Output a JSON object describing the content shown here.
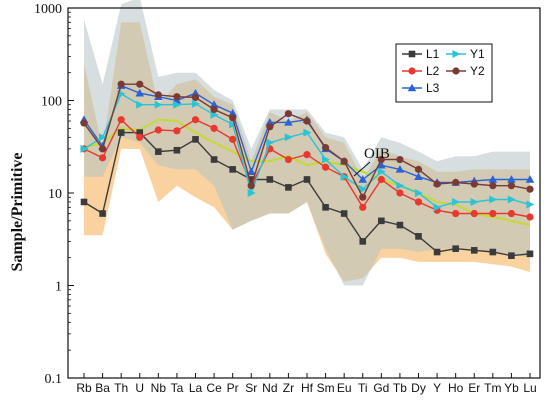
{
  "chart_data": {
    "type": "line",
    "ylabel": "Sample/Primitive",
    "yscale": "log",
    "ylim": [
      0.1,
      1000
    ],
    "y_ticks": [
      "0.1",
      "1",
      "10",
      "100",
      "1000"
    ],
    "categories": [
      "Rb",
      "Ba",
      "Th",
      "U",
      "Nb",
      "Ta",
      "La",
      "Ce",
      "Pr",
      "Sr",
      "Nd",
      "Zr",
      "Hf",
      "Sm",
      "Eu",
      "Ti",
      "Gd",
      "Tb",
      "Dy",
      "Y",
      "Ho",
      "Er",
      "Tm",
      "Yb",
      "Lu"
    ],
    "bands": [
      {
        "color": "#f5b461",
        "upper": [
          250,
          30,
          700,
          700,
          90,
          150,
          170,
          110,
          90,
          22,
          75,
          60,
          75,
          40,
          35,
          14,
          30,
          25,
          22,
          17,
          17,
          18,
          18,
          18,
          18
        ],
        "lower": [
          3.5,
          3.5,
          30,
          30,
          8,
          12,
          9,
          7,
          4,
          5,
          6,
          6,
          8,
          2.2,
          1.1,
          1.2,
          2,
          2,
          1.8,
          1.8,
          1.8,
          1.8,
          1.7,
          1.6,
          1.4
        ]
      },
      {
        "color": "#b5c2c5",
        "upper": [
          750,
          150,
          1100,
          1300,
          180,
          200,
          200,
          130,
          100,
          30,
          80,
          80,
          80,
          45,
          40,
          18,
          40,
          35,
          28,
          22,
          25,
          25,
          28,
          28,
          28
        ],
        "lower": [
          15,
          15,
          40,
          35,
          20,
          18,
          18,
          12,
          4,
          5,
          6,
          6,
          8,
          2.5,
          1,
          1,
          2.5,
          2.5,
          2.3,
          2.5,
          2.5,
          2.5,
          2.3,
          2.2,
          2
        ]
      }
    ],
    "series": [
      {
        "name": "L1",
        "color": "#3b3b3b",
        "marker": "square",
        "values": [
          8,
          6,
          45,
          45,
          28,
          29,
          38,
          23,
          18,
          14,
          14,
          11.5,
          14,
          7,
          6,
          3,
          5,
          4.5,
          3.4,
          2.3,
          2.5,
          2.4,
          2.3,
          2.1,
          2.2
        ]
      },
      {
        "name": "L2",
        "color": "#e8392e",
        "marker": "circle",
        "values": [
          30,
          24,
          62,
          40,
          48,
          47,
          62,
          50,
          38,
          12,
          30,
          23,
          26,
          19,
          15,
          7,
          14,
          10,
          8,
          6.5,
          6,
          6,
          6,
          6,
          5.5
        ]
      },
      {
        "name": "L3",
        "color": "#2a63d6",
        "marker": "triangle",
        "values": [
          62,
          32,
          145,
          120,
          110,
          100,
          120,
          90,
          73,
          17,
          58,
          58,
          62,
          30,
          22,
          14,
          20,
          18,
          15,
          13,
          13,
          13.5,
          14,
          14,
          14
        ]
      },
      {
        "name": "Y1",
        "color": "#2bc4d6",
        "marker": "arrow",
        "values": [
          30,
          40,
          118,
          90,
          90,
          90,
          92,
          70,
          55,
          10,
          35,
          40,
          45,
          23,
          15,
          11,
          17,
          12,
          10,
          7,
          8,
          8,
          8.5,
          8.5,
          7.5
        ]
      },
      {
        "name": "Y2",
        "color": "#7a3b34",
        "marker": "circle",
        "values": [
          57,
          30,
          150,
          150,
          115,
          110,
          108,
          80,
          65,
          12,
          52,
          72,
          60,
          31,
          22,
          9,
          23,
          23,
          18,
          12.5,
          13,
          12.5,
          12,
          12,
          11
        ]
      }
    ],
    "oib": {
      "label": "OIB",
      "color": "#c6d93a",
      "values": [
        31,
        35,
        50,
        48,
        62,
        60,
        45,
        35,
        28,
        22,
        22,
        25,
        20,
        22,
        20,
        17,
        14,
        12,
        10,
        8,
        7.5,
        6,
        5.5,
        5,
        4.5
      ]
    },
    "legend": {
      "position": "top-right",
      "entries": [
        "L1",
        "Y1",
        "L2",
        "Y2",
        "L3"
      ]
    }
  }
}
